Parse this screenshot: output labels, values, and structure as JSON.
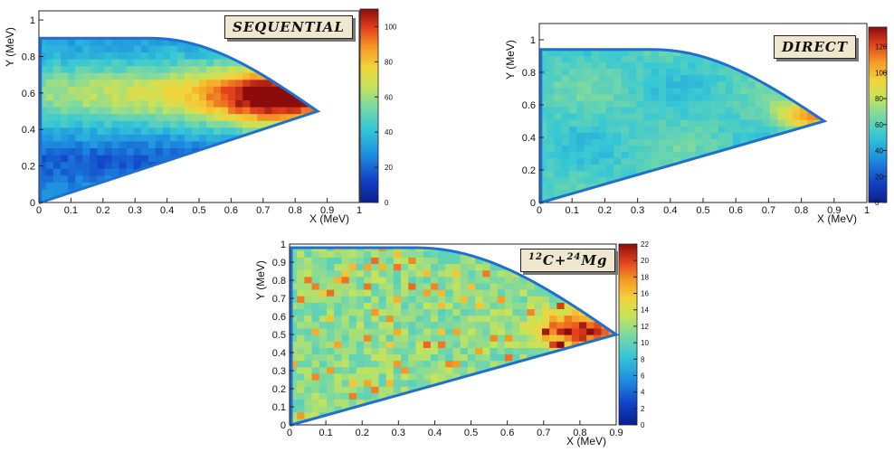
{
  "chart_data": [
    {
      "type": "heatmap",
      "id": "sequential",
      "title": "SEQUENTIAL",
      "xlabel": "X (MeV)",
      "ylabel": "Y (MeV)",
      "xlim": [
        0,
        1
      ],
      "ylim": [
        0,
        1.05
      ],
      "xticks": [
        "0",
        "0.1",
        "0.2",
        "0.3",
        "0.4",
        "0.5",
        "0.6",
        "0.7",
        "0.8",
        "0.9",
        "1"
      ],
      "yticks": [
        "0",
        "0.2",
        "0.4",
        "0.6",
        "0.8",
        "1"
      ],
      "colorbar": {
        "min": 0,
        "max": 110,
        "ticks": [
          "0",
          "20",
          "40",
          "60",
          "80",
          "100"
        ]
      },
      "hotspot": {
        "x": 0.72,
        "y": 0.56,
        "value": 108
      },
      "boundary_tip": {
        "x": 0.87,
        "y": 0.5
      },
      "top_edge_y": 0.9
    },
    {
      "type": "heatmap",
      "id": "direct",
      "title": "DIRECT",
      "xlabel": "X (MeV)",
      "ylabel": "Y (MeV)",
      "xlim": [
        0,
        1
      ],
      "ylim": [
        0,
        1.1
      ],
      "xticks": [
        "0",
        "0.1",
        "0.2",
        "0.3",
        "0.4",
        "0.5",
        "0.6",
        "0.7",
        "0.8",
        "0.9",
        "1"
      ],
      "yticks": [
        "0",
        "0.2",
        "0.4",
        "0.6",
        "0.8",
        "1"
      ],
      "colorbar": {
        "min": 0,
        "max": 135,
        "ticks": [
          "0",
          "20",
          "40",
          "60",
          "80",
          "100",
          "120"
        ]
      },
      "hotspot": {
        "x": 0.84,
        "y": 0.54,
        "value": 125
      },
      "boundary_tip": {
        "x": 0.87,
        "y": 0.5
      },
      "top_edge_y": 0.94
    },
    {
      "type": "heatmap",
      "id": "c12mg24",
      "title_pre": "12",
      "title_mid": "C+",
      "title_sup": "24",
      "title_post": "Mg",
      "xlabel": "X (MeV)",
      "ylabel": "Y (MeV)",
      "xlim": [
        0,
        0.9
      ],
      "ylim": [
        0,
        1
      ],
      "xticks": [
        "0",
        "0.1",
        "0.2",
        "0.3",
        "0.4",
        "0.5",
        "0.6",
        "0.7",
        "0.8",
        "0.9"
      ],
      "yticks": [
        "0",
        "0.1",
        "0.2",
        "0.3",
        "0.4",
        "0.5",
        "0.6",
        "0.7",
        "0.8",
        "0.9",
        "1"
      ],
      "colorbar": {
        "min": 0,
        "max": 22,
        "ticks": [
          "0",
          "2",
          "4",
          "6",
          "8",
          "10",
          "12",
          "14",
          "16",
          "18",
          "20",
          "22"
        ]
      },
      "hotspot": {
        "x": 0.8,
        "y": 0.53,
        "value": 22
      },
      "boundary_tip": {
        "x": 0.9,
        "y": 0.5
      },
      "top_edge_y": 0.98
    }
  ]
}
